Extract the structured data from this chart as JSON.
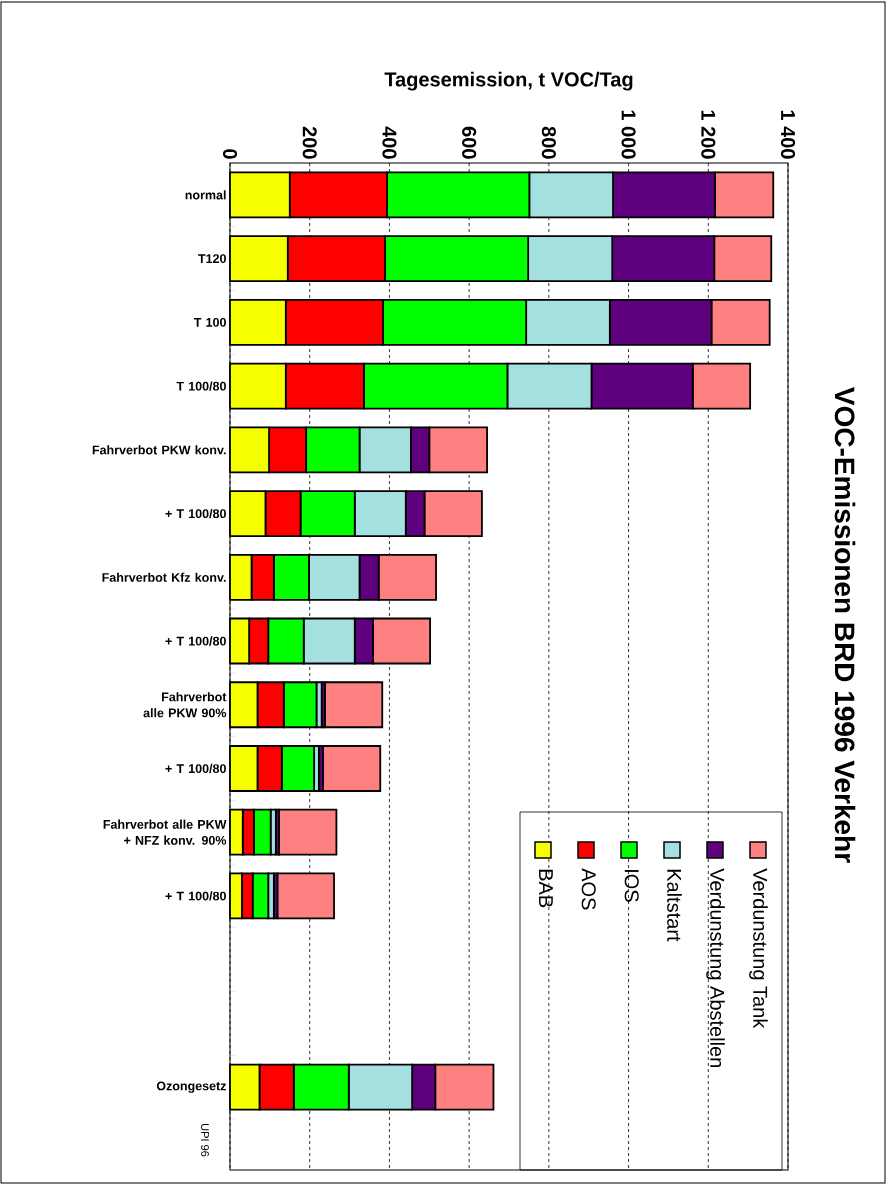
{
  "chart_data": {
    "type": "bar",
    "orientation": "horizontal",
    "stacked": true,
    "title": "VOC-Emissionen BRD 1996 Verkehr",
    "xlabel": "Tagesemission, t VOC/Tag",
    "categories": [
      "normal",
      "T120",
      "T 100",
      "T 100/80",
      "Fahrverbot PKW konv.",
      "+ T 100/80",
      "Fahrverbot Kfz konv.",
      "+ T 100/80",
      "Fahrverbot alle PKW 90%",
      "+ T 100/80",
      "Fahrverbot alle PKW + NFZ konv. 90%",
      "+ T 100/80",
      null,
      null,
      "Ozongesetz"
    ],
    "series": [
      {
        "name": "BAB",
        "color": "#f5ff00",
        "values": [
          150,
          145,
          140,
          140,
          98,
          89,
          54,
          48,
          69,
          69,
          32,
          30,
          null,
          null,
          74
        ]
      },
      {
        "name": "AOS",
        "color": "#ff0000",
        "values": [
          244,
          244,
          244,
          196,
          93,
          88,
          56,
          48,
          66,
          61,
          28,
          27,
          null,
          null,
          86
        ]
      },
      {
        "name": "IOS",
        "color": "#00ff00",
        "values": [
          357,
          359,
          359,
          360,
          134,
          136,
          88,
          89,
          82,
          81,
          42,
          39,
          null,
          null,
          138
        ]
      },
      {
        "name": "Kaltstart",
        "color": "#a4e0e0",
        "values": [
          210,
          211,
          210,
          211,
          129,
          128,
          127,
          128,
          13,
          12,
          13,
          14,
          null,
          null,
          159
        ]
      },
      {
        "name": "Verdunstung Abstellen",
        "color": "#5f007f",
        "values": [
          256,
          256,
          255,
          254,
          46,
          47,
          48,
          46,
          8,
          10,
          8,
          9,
          null,
          null,
          58
        ]
      },
      {
        "name": "Verdunstung Tank",
        "color": "#ff8080",
        "values": [
          146,
          143,
          146,
          144,
          145,
          144,
          144,
          143,
          144,
          144,
          144,
          142,
          null,
          null,
          146
        ]
      }
    ],
    "xlim": [
      0,
      1400
    ],
    "xticks": [
      0,
      200,
      400,
      600,
      800,
      {
        "value": 1000,
        "label": "1 000"
      },
      {
        "value": 1200,
        "label": "1 200"
      },
      {
        "value": 1400,
        "label": "1 400"
      }
    ],
    "grid": "x",
    "legend": "bottom right",
    "annotations": [
      "UPI 96"
    ]
  }
}
